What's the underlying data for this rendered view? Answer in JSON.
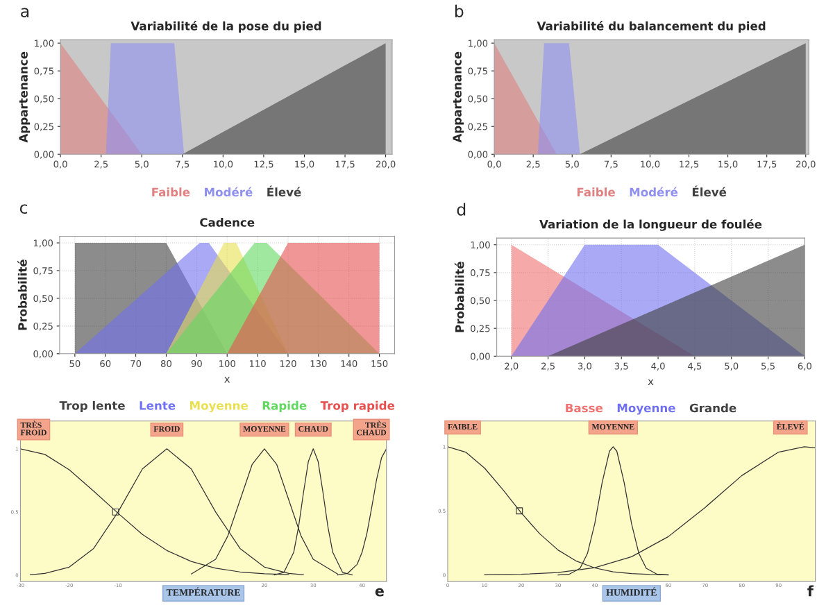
{
  "chart_data": [
    {
      "type": "area",
      "title": "Variabilité de la pose du pied",
      "ylabel": "Appartenance",
      "legend": "bottom",
      "annotations": [
        "a"
      ],
      "xlim": [
        0,
        20.4
      ],
      "ylim": [
        0,
        1.03
      ],
      "xticks": [
        {
          "value": 0,
          "label": "0,0"
        },
        {
          "value": 2.5,
          "label": "2,5"
        },
        {
          "value": 5,
          "label": "5,0"
        },
        {
          "value": 7.5,
          "label": "7,5"
        },
        {
          "value": 10,
          "label": "10,0"
        },
        {
          "value": 12.5,
          "label": "12,5"
        },
        {
          "value": 15,
          "label": "15,0"
        },
        {
          "value": 17.5,
          "label": "17,5"
        },
        {
          "value": 20,
          "label": "20,0"
        }
      ],
      "yticks": [
        {
          "value": 0,
          "label": "0,00"
        },
        {
          "value": 0.25,
          "label": "0,25"
        },
        {
          "value": 0.5,
          "label": "0,50"
        },
        {
          "value": 0.75,
          "label": "0,75"
        },
        {
          "value": 1,
          "label": "1,00"
        }
      ],
      "series": [
        {
          "name": "Faible",
          "color": "#e08080",
          "x": [
            0,
            0,
            5
          ],
          "values": [
            0,
            1,
            0
          ]
        },
        {
          "name": "Modéré",
          "color": "#8f8ff0",
          "x": [
            2.8,
            3.1,
            7,
            7.6
          ],
          "values": [
            0,
            1,
            1,
            0
          ]
        },
        {
          "name": "Élevé",
          "color": "#404040",
          "x": [
            7.5,
            20,
            20
          ],
          "values": [
            0,
            1,
            0
          ]
        }
      ]
    },
    {
      "type": "area",
      "title": "Variabilité du balancement du pied",
      "ylabel": "Appartenance",
      "legend": "bottom",
      "annotations": [
        "b"
      ],
      "xlim": [
        0,
        20.2
      ],
      "ylim": [
        0,
        1.03
      ],
      "xticks": [
        {
          "value": 0,
          "label": "0,0"
        },
        {
          "value": 2.5,
          "label": "2,5"
        },
        {
          "value": 5,
          "label": "5,0"
        },
        {
          "value": 7.5,
          "label": "7,5"
        },
        {
          "value": 10,
          "label": "10,0"
        },
        {
          "value": 12.5,
          "label": "12,5"
        },
        {
          "value": 15,
          "label": "15,0"
        },
        {
          "value": 17.5,
          "label": "17,5"
        },
        {
          "value": 20,
          "label": "20,0"
        }
      ],
      "yticks": [
        {
          "value": 0,
          "label": "0,00"
        },
        {
          "value": 0.25,
          "label": "0,25"
        },
        {
          "value": 0.5,
          "label": "0,50"
        },
        {
          "value": 0.75,
          "label": "0,75"
        },
        {
          "value": 1,
          "label": "1,00"
        }
      ],
      "series": [
        {
          "name": "Faible",
          "color": "#e08080",
          "x": [
            0,
            0,
            4
          ],
          "values": [
            0,
            1,
            0
          ]
        },
        {
          "name": "Modéré",
          "color": "#8f8ff0",
          "x": [
            2.8,
            3.2,
            4.8,
            5.5
          ],
          "values": [
            0,
            1,
            1,
            0
          ]
        },
        {
          "name": "Élevé",
          "color": "#404040",
          "x": [
            5.5,
            20,
            20
          ],
          "values": [
            0,
            1,
            0
          ]
        }
      ]
    },
    {
      "type": "area",
      "title": "Cadence",
      "xlabel": "x",
      "ylabel": "Probabilité",
      "legend": "bottom",
      "grid": true,
      "annotations": [
        "c"
      ],
      "xlim": [
        45,
        155
      ],
      "ylim": [
        0,
        1.06
      ],
      "xticks": [
        50,
        60,
        70,
        80,
        90,
        100,
        110,
        120,
        130,
        140,
        150
      ],
      "yticks": [
        {
          "value": 0,
          "label": "0,00"
        },
        {
          "value": 0.25,
          "label": "0,25"
        },
        {
          "value": 0.5,
          "label": "0,50"
        },
        {
          "value": 0.75,
          "label": "0,75"
        },
        {
          "value": 1,
          "label": "1,00"
        }
      ],
      "series": [
        {
          "name": "Trop lente",
          "color": "#404040",
          "x": [
            50,
            50,
            80,
            100
          ],
          "values": [
            0,
            1,
            1,
            0
          ]
        },
        {
          "name": "Lente",
          "color": "#7070f0",
          "x": [
            50,
            91,
            94,
            120
          ],
          "values": [
            0,
            1,
            1,
            0
          ]
        },
        {
          "name": "Moyenne",
          "color": "#e8e050",
          "x": [
            80,
            99,
            103,
            120
          ],
          "values": [
            0,
            1,
            1,
            0
          ]
        },
        {
          "name": "Rapide",
          "color": "#60d860",
          "x": [
            80,
            109,
            113,
            150
          ],
          "values": [
            0,
            1,
            1,
            0
          ]
        },
        {
          "name": "Trop rapide",
          "color": "#e85050",
          "x": [
            100,
            120,
            150,
            150
          ],
          "values": [
            0,
            1,
            1,
            0
          ]
        }
      ]
    },
    {
      "type": "area",
      "title": "Variation de la longueur de foulée",
      "xlabel": "x",
      "ylabel": "Probabilité",
      "legend": "bottom",
      "grid": true,
      "annotations": [
        "d"
      ],
      "xlim": [
        1.8,
        6.0
      ],
      "ylim": [
        0,
        1.06
      ],
      "xticks": [
        {
          "value": 2,
          "label": "2,0"
        },
        {
          "value": 2.5,
          "label": "2,5"
        },
        {
          "value": 3,
          "label": "3,0"
        },
        {
          "value": 3.5,
          "label": "3,5"
        },
        {
          "value": 4,
          "label": "4,0"
        },
        {
          "value": 4.5,
          "label": "4,5"
        },
        {
          "value": 5,
          "label": "5,0"
        },
        {
          "value": 5.5,
          "label": "5,5"
        },
        {
          "value": 6,
          "label": "6,0"
        }
      ],
      "yticks": [
        {
          "value": 0,
          "label": "0,00"
        },
        {
          "value": 0.25,
          "label": "0,25"
        },
        {
          "value": 0.5,
          "label": "0,50"
        },
        {
          "value": 0.75,
          "label": "0,75"
        },
        {
          "value": 1,
          "label": "1,00"
        }
      ],
      "series": [
        {
          "name": "Basse",
          "color": "#f07070",
          "x": [
            2,
            2,
            4.5
          ],
          "values": [
            0,
            1,
            0
          ]
        },
        {
          "name": "Moyenne",
          "color": "#7070f0",
          "x": [
            2,
            3,
            4,
            6
          ],
          "values": [
            0,
            1,
            1,
            0
          ]
        },
        {
          "name": "Grande",
          "color": "#404040",
          "x": [
            2.5,
            6,
            6
          ],
          "values": [
            0,
            1,
            0
          ]
        }
      ]
    },
    {
      "type": "line",
      "xlabel": "TEMPÉRATURE",
      "xlim": [
        -30,
        45
      ],
      "ylim": [
        -0.05,
        1.22
      ],
      "xticks": [
        -30,
        -20,
        -10,
        20,
        30,
        40
      ],
      "yticks": [
        0,
        0.5,
        1
      ],
      "annotations": [
        "e",
        {
          "text": "TRÈS\nFROID",
          "x": -30,
          "y": 1
        },
        {
          "text": "FROID",
          "x": 0,
          "y": 1
        },
        {
          "text": "MOYENNE",
          "x": 20,
          "y": 1
        },
        {
          "text": "CHAUD",
          "x": 30,
          "y": 1
        },
        {
          "text": "TRÈS\nCHAUD",
          "x": 45,
          "y": 1
        }
      ],
      "series": [
        {
          "color": "#333333",
          "x": [
            -30,
            -25,
            -20,
            -15,
            -10,
            -5,
            0,
            5,
            10,
            15,
            20,
            25
          ],
          "values": [
            1,
            0.956,
            0.834,
            0.665,
            0.49,
            0.322,
            0.195,
            0.108,
            0.055,
            0.025,
            0.011,
            0.004
          ]
        },
        {
          "color": "#333333",
          "x": [
            -28,
            -25,
            -20,
            -15,
            -10,
            -5,
            0,
            5,
            10,
            15,
            20,
            25,
            28
          ],
          "values": [
            0.002,
            0.013,
            0.063,
            0.211,
            0.5,
            0.841,
            1,
            0.841,
            0.5,
            0.211,
            0.063,
            0.013,
            0.002
          ]
        },
        {
          "color": "#333333",
          "x": [
            5,
            10,
            12.5,
            15,
            17.5,
            20,
            22.5,
            25,
            27.5,
            30,
            35
          ],
          "values": [
            0.009,
            0.125,
            0.31,
            0.594,
            0.878,
            1,
            0.878,
            0.594,
            0.31,
            0.125,
            0.009
          ]
        },
        {
          "color": "#333333",
          "x": [
            22,
            24,
            26,
            27,
            28,
            29,
            30,
            31,
            32,
            33,
            34,
            36,
            38
          ],
          "values": [
            0.001,
            0.022,
            0.18,
            0.384,
            0.653,
            0.9,
            1,
            0.9,
            0.653,
            0.384,
            0.18,
            0.022,
            0.001
          ]
        },
        {
          "color": "#333333",
          "x": [
            35,
            37,
            39,
            40,
            41,
            42,
            43,
            44,
            45
          ],
          "values": [
            0.001,
            0.013,
            0.085,
            0.18,
            0.33,
            0.54,
            0.76,
            0.93,
            1
          ]
        },
        {
          "type": "scatter",
          "marker": "square",
          "color": "#333333",
          "x": [
            -10.5
          ],
          "values": [
            0.5
          ]
        }
      ]
    },
    {
      "type": "line",
      "xlabel": "HUMIDITÉ",
      "xlim": [
        0,
        100
      ],
      "ylim": [
        -0.05,
        1.2
      ],
      "xticks": [
        0,
        10,
        20,
        30,
        40,
        60,
        70,
        80,
        90
      ],
      "yticks": [
        0,
        0.5,
        1
      ],
      "annotations": [
        "f",
        {
          "text": "FAIBLE",
          "x": 0,
          "y": 1
        },
        {
          "text": "MOYENNE",
          "x": 45,
          "y": 1
        },
        {
          "text": "ÈLEVÉ",
          "x": 97,
          "y": 1
        }
      ],
      "series": [
        {
          "color": "#333333",
          "x": [
            0,
            5,
            10,
            15,
            20,
            25,
            30,
            35,
            40,
            45,
            50,
            55,
            60
          ],
          "values": [
            1,
            0.956,
            0.834,
            0.665,
            0.484,
            0.322,
            0.195,
            0.108,
            0.055,
            0.025,
            0.011,
            0.004,
            0.001
          ]
        },
        {
          "color": "#333333",
          "x": [
            30,
            33,
            36,
            38,
            40,
            42,
            44,
            45,
            46,
            48,
            50,
            52,
            54,
            57,
            60
          ],
          "values": [
            0,
            0.005,
            0.052,
            0.167,
            0.4,
            0.72,
            0.965,
            1,
            0.965,
            0.72,
            0.4,
            0.167,
            0.052,
            0.005,
            0
          ]
        },
        {
          "color": "#333333",
          "x": [
            10,
            20,
            30,
            40,
            50,
            60,
            70,
            80,
            90,
            97,
            100
          ],
          "values": [
            0.001,
            0.005,
            0.019,
            0.057,
            0.142,
            0.299,
            0.526,
            0.775,
            0.958,
            1,
            0.992
          ]
        },
        {
          "type": "scatter",
          "marker": "square",
          "color": "#333333",
          "x": [
            19.5
          ],
          "values": [
            0.5
          ]
        }
      ]
    }
  ]
}
